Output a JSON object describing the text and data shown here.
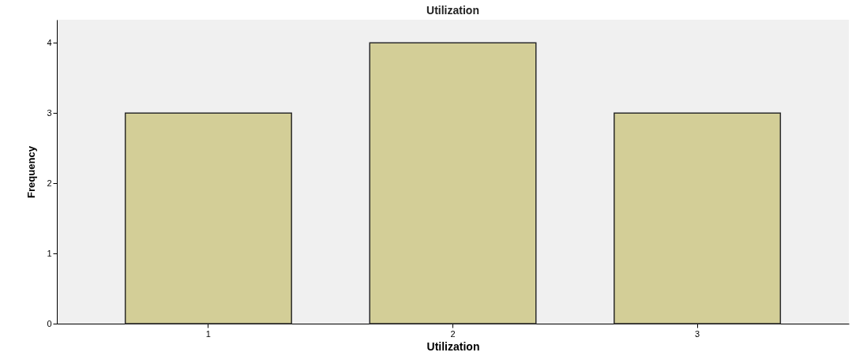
{
  "chart_data": {
    "type": "bar",
    "title": "Utilization",
    "xlabel": "Utilization",
    "ylabel": "Frequency",
    "categories": [
      "1",
      "2",
      "3"
    ],
    "values": [
      3,
      4,
      3
    ],
    "color": "#d3ce97",
    "ylim": [
      0,
      4.33
    ],
    "yticks": [
      0,
      1,
      2,
      3,
      4
    ],
    "grid": false
  }
}
